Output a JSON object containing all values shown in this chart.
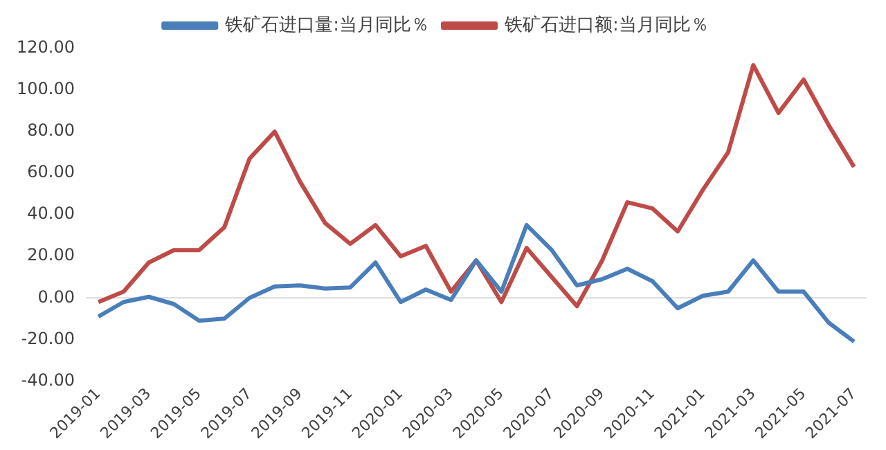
{
  "chart_data": {
    "type": "line",
    "categories": [
      "2019-01",
      null,
      "2019-03",
      null,
      "2019-05",
      null,
      "2019-07",
      null,
      "2019-09",
      null,
      "2019-11",
      null,
      "2020-01",
      null,
      "2020-03",
      null,
      "2020-05",
      null,
      "2020-07",
      null,
      "2020-09",
      null,
      "2020-11",
      null,
      "2021-01",
      null,
      "2021-03",
      null,
      "2021-05",
      null,
      "2021-07"
    ],
    "series": [
      {
        "name": "铁矿石进口量:当月同比％",
        "color": "#4a7ebb",
        "values": [
          -9,
          -2,
          0.5,
          -3,
          -11,
          -10,
          0,
          5.5,
          6,
          4.5,
          5,
          17,
          -2,
          4,
          -1,
          18,
          3,
          35,
          23,
          6,
          9,
          14,
          8,
          -5,
          1,
          3,
          18,
          3,
          3,
          -12,
          -21
        ]
      },
      {
        "name": "铁矿石进口额:当月同比％",
        "color": "#be4b48",
        "values": [
          -2,
          3,
          17,
          23,
          23,
          34,
          67,
          80,
          56,
          36,
          26,
          35,
          20,
          25,
          3,
          18,
          -2,
          24,
          10,
          -4,
          18,
          46,
          43,
          32,
          52,
          70,
          112,
          89,
          105,
          83,
          63
        ]
      }
    ],
    "ylim": [
      -40,
      120
    ],
    "yticks": [
      {
        "value": -40,
        "label": "-40.00"
      },
      {
        "value": -20,
        "label": "-20.00"
      },
      {
        "value": 0,
        "label": "0.00"
      },
      {
        "value": 20,
        "label": "20.00"
      },
      {
        "value": 40,
        "label": "40.00"
      },
      {
        "value": 60,
        "label": "60.00"
      },
      {
        "value": 80,
        "label": "80.00"
      },
      {
        "value": 100,
        "label": "100.00"
      },
      {
        "value": 120,
        "label": "120.00"
      }
    ],
    "ref_lines": [
      {
        "axis": "y",
        "value": 0,
        "color": "#d9d9d9"
      }
    ],
    "grid": false,
    "legend": "top",
    "marker": "none",
    "line_style": "solid"
  }
}
